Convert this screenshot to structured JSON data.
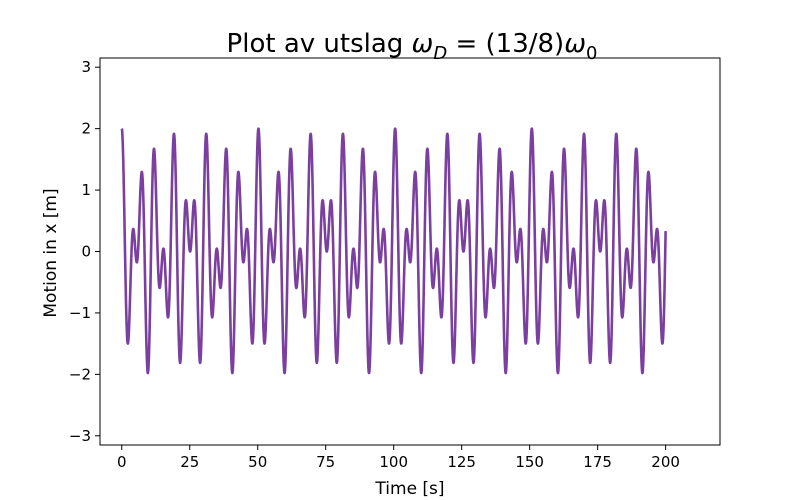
{
  "chart_data": {
    "type": "line",
    "title": {
      "prefix": "Plot av utslag ",
      "omega": "ω",
      "sub_d": "D",
      "middle": " = (13/8)",
      "sub_0": "0"
    },
    "xlabel": "Time [s]",
    "ylabel": "Motion in x [m]",
    "xlim": [
      -8,
      220
    ],
    "ylim": [
      -3.15,
      3.15
    ],
    "xticks": [
      0,
      25,
      50,
      75,
      100,
      125,
      150,
      175,
      200
    ],
    "yticks": [
      -3,
      -2,
      -1,
      0,
      1,
      2,
      3
    ],
    "ytick_labels": [
      "−3",
      "−2",
      "−1",
      "0",
      "1",
      "2",
      "3"
    ],
    "grid": false,
    "series": [
      {
        "color": "#7b3fa0",
        "x_range": [
          0,
          200
        ],
        "model": {
          "a1": 1.0,
          "w1": 1.0,
          "a2": 1.0,
          "w2": 1.625
        }
      }
    ]
  }
}
